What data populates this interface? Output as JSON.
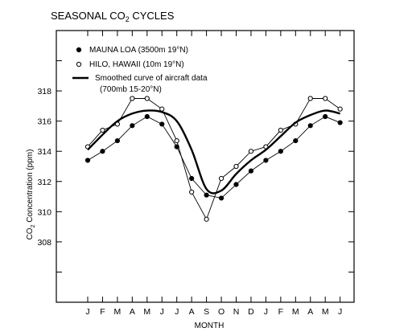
{
  "chart_data": {
    "type": "line",
    "title": "SEASONAL CO",
    "title_sub": "2",
    "title_tail": " CYCLES",
    "xlabel": "MONTH",
    "ylabel": {
      "pre": "CO",
      "sub": "2",
      "post": " Concentration  (ppm)"
    },
    "categories": [
      "J",
      "F",
      "M",
      "A",
      "M",
      "J",
      "J",
      "A",
      "S",
      "O",
      "N",
      "D",
      "J",
      "F",
      "M",
      "A",
      "M",
      "J"
    ],
    "ylim": [
      304,
      322
    ],
    "yticks": [
      308,
      310,
      312,
      314,
      316,
      318
    ],
    "grid": false,
    "legend_position": "top-left",
    "series": [
      {
        "name": "MAUNA LOA (3500m 19°N)",
        "marker": "filled-circle",
        "values": [
          313.4,
          314.0,
          314.7,
          315.7,
          316.3,
          315.8,
          314.3,
          312.2,
          311.1,
          310.9,
          311.8,
          312.7,
          313.4,
          314.0,
          314.7,
          315.7,
          316.3,
          315.9
        ]
      },
      {
        "name": "HILO, HAWAII (10m 19°N)",
        "marker": "open-circle",
        "values": [
          314.3,
          315.4,
          315.8,
          317.5,
          317.5,
          316.8,
          314.7,
          311.3,
          309.5,
          312.2,
          313.0,
          314.0,
          314.3,
          315.4,
          315.8,
          317.5,
          317.5,
          316.8
        ]
      },
      {
        "name": "Smoothed curve of aircraft data",
        "name_line2": "(700mb 15-20°N)",
        "marker": "none",
        "values": [
          314.1,
          315.1,
          316.0,
          316.5,
          316.7,
          316.6,
          316.0,
          314.1,
          311.5,
          311.4,
          312.5,
          313.4,
          314.1,
          315.0,
          315.9,
          316.4,
          316.7,
          316.5
        ]
      }
    ]
  }
}
